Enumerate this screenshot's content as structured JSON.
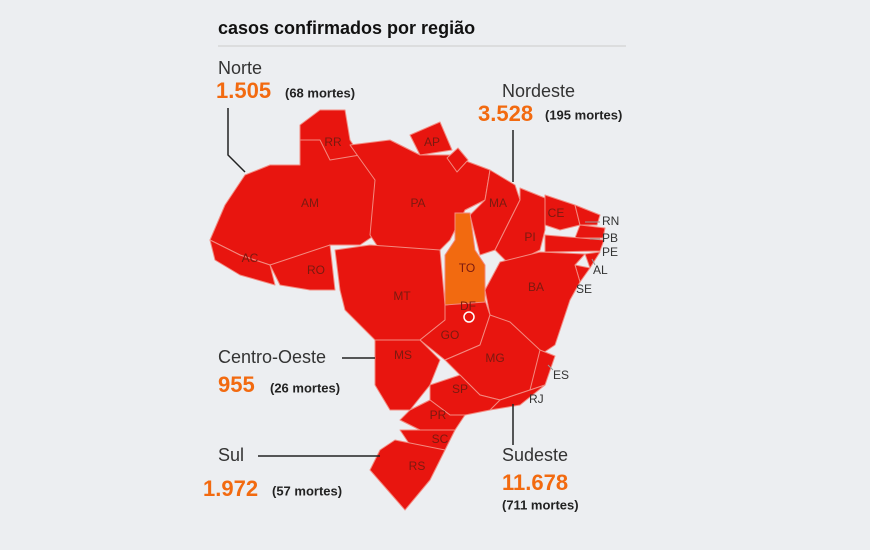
{
  "title": "casos confirmados por região",
  "regions": [
    {
      "name": "Norte",
      "cases": "1.505",
      "deaths": "(68 mortes)"
    },
    {
      "name": "Nordeste",
      "cases": "3.528",
      "deaths": "(195 mortes)"
    },
    {
      "name": "Centro-Oeste",
      "cases": "955",
      "deaths": "(26 mortes)"
    },
    {
      "name": "Sul",
      "cases": "1.972",
      "deaths": "(57 mortes)"
    },
    {
      "name": "Sudeste",
      "cases": "11.678",
      "deaths": "(711 mortes)"
    }
  ],
  "states": [
    "RR",
    "AP",
    "AM",
    "PA",
    "MA",
    "CE",
    "RN",
    "PB",
    "PE",
    "PI",
    "AL",
    "AC",
    "RO",
    "TO",
    "SE",
    "BA",
    "MT",
    "DF",
    "GO",
    "MS",
    "MG",
    "ES",
    "SP",
    "RJ",
    "PR",
    "SC",
    "RS"
  ]
}
